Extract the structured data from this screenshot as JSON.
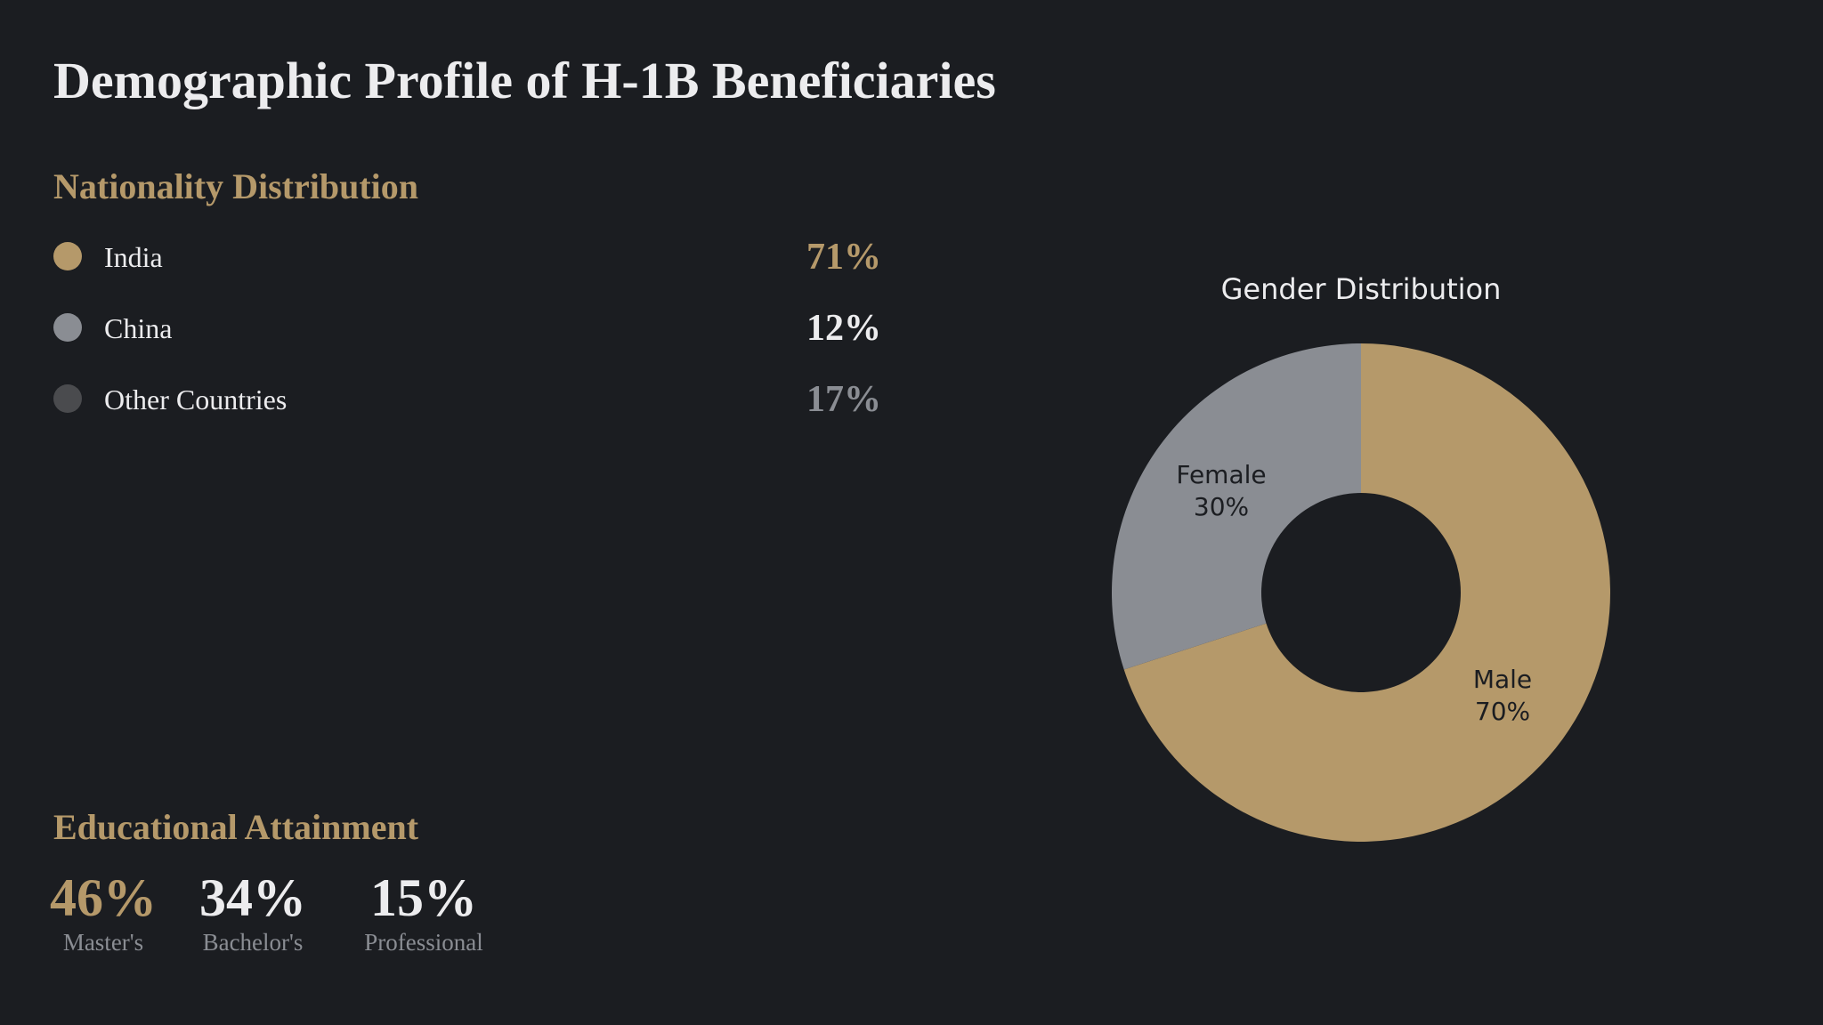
{
  "page": {
    "title": "Demographic Profile of H-1B Beneficiaries",
    "background": "#1b1d21"
  },
  "colors": {
    "accent_gold": "#b5996a",
    "slice_gray": "#8a8d93",
    "dot_dark": "#4a4b4e",
    "text_light": "#ececee",
    "text_muted": "#8a8d93"
  },
  "nationality": {
    "heading": "Nationality Distribution",
    "items": [
      {
        "label": "India",
        "value": "71%",
        "dot_color": "#b5996a",
        "value_color": "#b5996a"
      },
      {
        "label": "China",
        "value": "12%",
        "dot_color": "#8a8d93",
        "value_color": "#ececee"
      },
      {
        "label": "Other Countries",
        "value": "17%",
        "dot_color": "#4a4b4e",
        "value_color": "#8a8d93"
      }
    ]
  },
  "education": {
    "heading": "Educational Attainment",
    "items": [
      {
        "value": "46%",
        "label": "Master's",
        "value_color": "#b5996a"
      },
      {
        "value": "34%",
        "label": "Bachelor's",
        "value_color": "#ececee"
      },
      {
        "value": "15%",
        "label": "Professional",
        "value_color": "#ececee"
      }
    ]
  },
  "chart_data": {
    "type": "pie",
    "subtype": "donut",
    "title": "Gender Distribution",
    "categories": [
      "Male",
      "Female"
    ],
    "values": [
      70,
      30
    ],
    "labels": [
      "Male\n70%",
      "Female\n30%"
    ],
    "colors": [
      "#b5996a",
      "#8a8d93"
    ],
    "start_angle": "top (12 o'clock), clockwise",
    "hole_ratio": 0.4,
    "legend": "none",
    "label_lines": {
      "male": {
        "name": "Male",
        "pct": "70%"
      },
      "female": {
        "name": "Female",
        "pct": "30%"
      }
    }
  }
}
